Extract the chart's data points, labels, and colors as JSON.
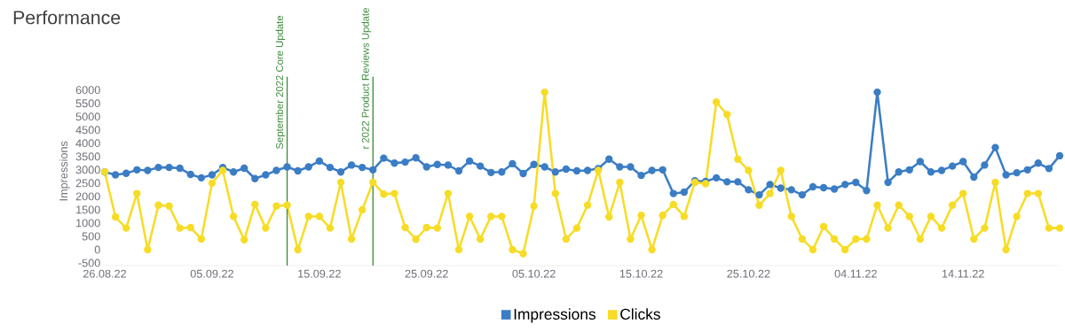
{
  "chart_data": {
    "type": "line",
    "title": "Performance",
    "ylabel": "Impressions",
    "x": [
      "2022-08-26",
      "2022-08-27",
      "2022-08-28",
      "2022-08-29",
      "2022-08-30",
      "2022-08-31",
      "2022-09-01",
      "2022-09-02",
      "2022-09-03",
      "2022-09-04",
      "2022-09-05",
      "2022-09-06",
      "2022-09-07",
      "2022-09-08",
      "2022-09-09",
      "2022-09-10",
      "2022-09-11",
      "2022-09-12",
      "2022-09-13",
      "2022-09-14",
      "2022-09-15",
      "2022-09-16",
      "2022-09-17",
      "2022-09-18",
      "2022-09-19",
      "2022-09-20",
      "2022-09-21",
      "2022-09-22",
      "2022-09-23",
      "2022-09-24",
      "2022-09-25",
      "2022-09-26",
      "2022-09-27",
      "2022-09-28",
      "2022-09-29",
      "2022-09-30",
      "2022-10-01",
      "2022-10-02",
      "2022-10-03",
      "2022-10-04",
      "2022-10-05",
      "2022-10-06",
      "2022-10-07",
      "2022-10-08",
      "2022-10-09",
      "2022-10-10",
      "2022-10-11",
      "2022-10-12",
      "2022-10-13",
      "2022-10-14",
      "2022-10-15",
      "2022-10-16",
      "2022-10-17",
      "2022-10-18",
      "2022-10-19",
      "2022-10-20",
      "2022-10-21",
      "2022-10-22",
      "2022-10-23",
      "2022-10-24",
      "2022-10-25",
      "2022-10-26",
      "2022-10-27",
      "2022-10-28",
      "2022-10-29",
      "2022-10-30",
      "2022-10-31",
      "2022-11-01",
      "2022-11-02",
      "2022-11-03",
      "2022-11-04",
      "2022-11-05",
      "2022-11-06",
      "2022-11-07",
      "2022-11-08",
      "2022-11-09",
      "2022-11-10",
      "2022-11-11",
      "2022-11-12",
      "2022-11-13",
      "2022-11-14",
      "2022-11-15",
      "2022-11-16",
      "2022-11-17",
      "2022-11-18",
      "2022-11-19",
      "2022-11-20",
      "2022-11-21",
      "2022-11-22",
      "2022-11-23"
    ],
    "series": [
      {
        "name": "Impressions",
        "color": "#3b7dc4",
        "values": [
          2920,
          2810,
          2870,
          3000,
          2980,
          3090,
          3090,
          3060,
          2830,
          2700,
          2810,
          3090,
          2920,
          3060,
          2670,
          2810,
          2980,
          3110,
          2960,
          3110,
          3330,
          3090,
          2920,
          3180,
          3090,
          3000,
          3440,
          3250,
          3290,
          3450,
          3110,
          3200,
          3180,
          2960,
          3330,
          3140,
          2900,
          2920,
          3230,
          2860,
          3200,
          3110,
          2920,
          3030,
          2960,
          2980,
          3050,
          3400,
          3110,
          3110,
          2790,
          2980,
          3000,
          2110,
          2160,
          2590,
          2560,
          2700,
          2550,
          2550,
          2250,
          2060,
          2450,
          2310,
          2250,
          2060,
          2360,
          2330,
          2280,
          2450,
          2530,
          2220,
          5920,
          2530,
          2920,
          3000,
          3310,
          2920,
          2980,
          3140,
          3310,
          2730,
          3180,
          3840,
          2810,
          2890,
          3000,
          3250,
          3050,
          3530
        ]
      },
      {
        "name": "Clicks",
        "color": "#f7dc26",
        "values": [
          2920,
          1230,
          810,
          2110,
          0,
          1670,
          1640,
          810,
          830,
          400,
          2500,
          2980,
          1250,
          370,
          1700,
          810,
          1640,
          1670,
          0,
          1250,
          1250,
          810,
          2530,
          400,
          1500,
          2530,
          2090,
          2110,
          830,
          390,
          830,
          810,
          2110,
          0,
          1250,
          400,
          1250,
          1250,
          0,
          -150,
          1640,
          5920,
          2110,
          400,
          810,
          1670,
          2980,
          1230,
          2530,
          400,
          1290,
          0,
          1290,
          1700,
          1250,
          2530,
          2480,
          5550,
          5080,
          3400,
          2980,
          1670,
          2110,
          2980,
          1250,
          400,
          0,
          870,
          400,
          0,
          400,
          400,
          1670,
          810,
          1670,
          1250,
          400,
          1250,
          810,
          1670,
          2110,
          400,
          810,
          2530,
          0,
          1250,
          2110,
          2110,
          810,
          810
        ]
      }
    ],
    "xlim": [
      "2022-08-26",
      "2022-11-23"
    ],
    "xticks": [
      {
        "value": "2022-08-26",
        "label": "26.08.22"
      },
      {
        "value": "2022-09-05",
        "label": "05.09.22"
      },
      {
        "value": "2022-09-15",
        "label": "15.09.22"
      },
      {
        "value": "2022-09-25",
        "label": "25.09.22"
      },
      {
        "value": "2022-10-05",
        "label": "05.10.22"
      },
      {
        "value": "2022-10-15",
        "label": "15.10.22"
      },
      {
        "value": "2022-10-25",
        "label": "25.10.22"
      },
      {
        "value": "2022-11-04",
        "label": "04.11.22"
      },
      {
        "value": "2022-11-14",
        "label": "14.11.22"
      }
    ],
    "ylim": [
      -600,
      6500
    ],
    "yticks": [
      -500,
      0,
      500,
      1000,
      1500,
      2000,
      2500,
      3000,
      3500,
      4000,
      4500,
      5000,
      5500,
      6000
    ],
    "ref_lines": [
      {
        "axis": "x",
        "value": "2022-09-12",
        "label": "September 2022 Core Update",
        "color": "#3d8b3d"
      },
      {
        "axis": "x",
        "value": "2022-09-20",
        "label": "r 2022 Product Reviews Update",
        "color": "#3d8b3d"
      }
    ],
    "marker": "circle",
    "line_style": "solid",
    "legend": "bottom"
  }
}
